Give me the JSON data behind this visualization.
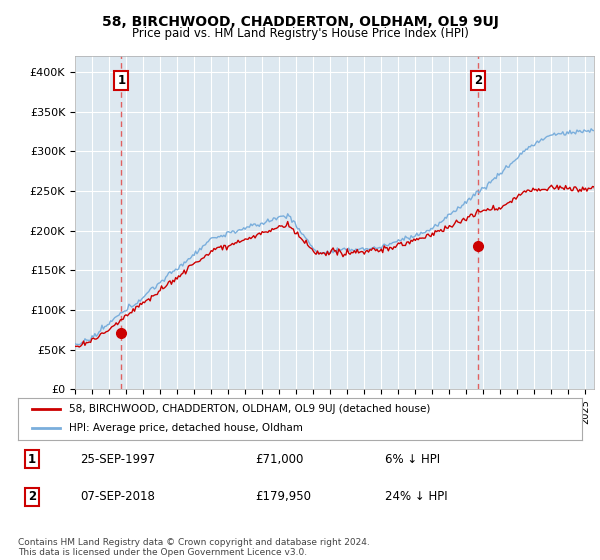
{
  "title": "58, BIRCHWOOD, CHADDERTON, OLDHAM, OL9 9UJ",
  "subtitle": "Price paid vs. HM Land Registry's House Price Index (HPI)",
  "ylabel_ticks": [
    "£0",
    "£50K",
    "£100K",
    "£150K",
    "£200K",
    "£250K",
    "£300K",
    "£350K",
    "£400K"
  ],
  "ytick_values": [
    0,
    50000,
    100000,
    150000,
    200000,
    250000,
    300000,
    350000,
    400000
  ],
  "ylim": [
    0,
    420000
  ],
  "xlim_start": 1995.0,
  "xlim_end": 2025.5,
  "sale1_x": 1997.73,
  "sale1_y": 71000,
  "sale1_label": "1",
  "sale1_date": "25-SEP-1997",
  "sale1_price": "£71,000",
  "sale1_hpi": "6% ↓ HPI",
  "sale2_x": 2018.68,
  "sale2_y": 179950,
  "sale2_label": "2",
  "sale2_date": "07-SEP-2018",
  "sale2_price": "£179,950",
  "sale2_hpi": "24% ↓ HPI",
  "hpi_color": "#7aaedc",
  "sale_color": "#cc0000",
  "marker_color": "#cc0000",
  "vline_color": "#e06060",
  "grid_color": "#cccccc",
  "chart_bg": "#dde8f0",
  "background_color": "#ffffff",
  "legend_label_sale": "58, BIRCHWOOD, CHADDERTON, OLDHAM, OL9 9UJ (detached house)",
  "legend_label_hpi": "HPI: Average price, detached house, Oldham",
  "footer": "Contains HM Land Registry data © Crown copyright and database right 2024.\nThis data is licensed under the Open Government Licence v3.0.",
  "xtick_years": [
    1995,
    1996,
    1997,
    1998,
    1999,
    2000,
    2001,
    2002,
    2003,
    2004,
    2005,
    2006,
    2007,
    2008,
    2009,
    2010,
    2011,
    2012,
    2013,
    2014,
    2015,
    2016,
    2017,
    2018,
    2019,
    2020,
    2021,
    2022,
    2023,
    2024,
    2025
  ]
}
